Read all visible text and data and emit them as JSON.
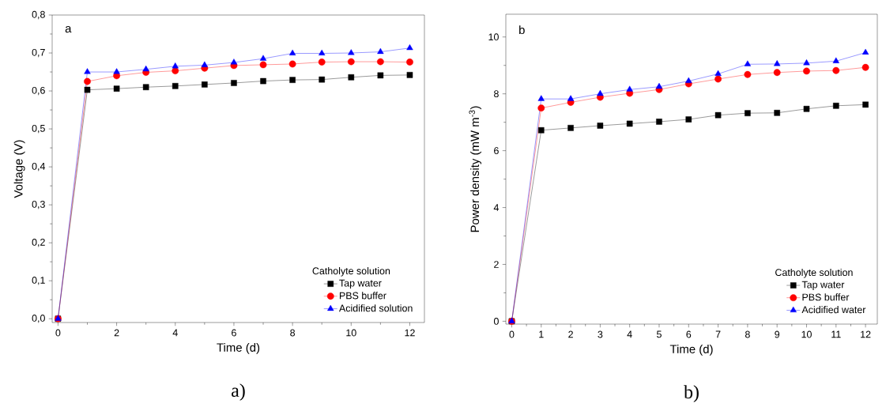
{
  "chart_data": [
    {
      "type": "line",
      "xlabel": "Time (d)",
      "ylabel": "Voltage (V)",
      "legend_title": "Catholyte solution",
      "legend": "bottom right",
      "annotations": [
        "a",
        "a)"
      ],
      "x": [
        0,
        1,
        2,
        3,
        4,
        5,
        6,
        7,
        8,
        9,
        10,
        11,
        12
      ],
      "xlim": [
        -0.2,
        12.5
      ],
      "ylim": [
        -0.01,
        0.8
      ],
      "xticks": [
        0,
        2,
        4,
        6,
        8,
        10,
        12
      ],
      "yticks": [
        {
          "value": 0,
          "label": "0,0"
        },
        {
          "value": 0.1,
          "label": "0,1"
        },
        {
          "value": 0.2,
          "label": "0,2"
        },
        {
          "value": 0.3,
          "label": "0,3"
        },
        {
          "value": 0.4,
          "label": "0,4"
        },
        {
          "value": 0.5,
          "label": "0,5"
        },
        {
          "value": 0.6,
          "label": "0,6"
        },
        {
          "value": 0.7,
          "label": "0,7"
        },
        {
          "value": 0.8,
          "label": "0,8"
        }
      ],
      "series": [
        {
          "name": "Tap water",
          "color": "#000000",
          "marker": "square",
          "values": [
            0,
            0.603,
            0.606,
            0.61,
            0.613,
            0.617,
            0.621,
            0.626,
            0.629,
            0.63,
            0.636,
            0.641,
            0.642
          ]
        },
        {
          "name": "PBS buffer",
          "color": "#ff0000",
          "marker": "circle",
          "values": [
            0,
            0.625,
            0.64,
            0.649,
            0.653,
            0.66,
            0.667,
            0.669,
            0.671,
            0.676,
            0.677,
            0.677,
            0.676
          ]
        },
        {
          "name": "Acidified solution",
          "color": "#0000ff",
          "marker": "triangle",
          "values": [
            0,
            0.65,
            0.65,
            0.657,
            0.665,
            0.668,
            0.675,
            0.685,
            0.699,
            0.699,
            0.7,
            0.703,
            0.713
          ]
        }
      ]
    },
    {
      "type": "line",
      "xlabel": "Time (d)",
      "ylabel": "Power density (mW m$^{-3}$)",
      "legend_title": "Catholyte solution",
      "legend": "bottom right",
      "annotations": [
        "b",
        "b)"
      ],
      "x": [
        0,
        1,
        2,
        3,
        4,
        5,
        6,
        7,
        8,
        9,
        10,
        11,
        12
      ],
      "xlim": [
        -0.2,
        12.4
      ],
      "ylim": [
        -0.1,
        10.8
      ],
      "xticks": [
        0,
        1,
        2,
        3,
        4,
        5,
        6,
        7,
        8,
        9,
        10,
        11,
        12
      ],
      "yticks": [
        0,
        2,
        4,
        6,
        8,
        10
      ],
      "series": [
        {
          "name": "Tap water",
          "color": "#000000",
          "marker": "square",
          "values": [
            0,
            6.72,
            6.8,
            6.88,
            6.95,
            7.02,
            7.1,
            7.25,
            7.32,
            7.33,
            7.47,
            7.58,
            7.62
          ]
        },
        {
          "name": "PBS buffer",
          "color": "#ff0000",
          "marker": "circle",
          "values": [
            0,
            7.5,
            7.7,
            7.88,
            8.02,
            8.15,
            8.35,
            8.52,
            8.68,
            8.75,
            8.8,
            8.82,
            8.93
          ]
        },
        {
          "name": "Acidified water",
          "color": "#0000ff",
          "marker": "triangle",
          "values": [
            0,
            7.82,
            7.82,
            8.0,
            8.15,
            8.25,
            8.45,
            8.7,
            9.04,
            9.05,
            9.08,
            9.15,
            9.45
          ]
        }
      ]
    }
  ]
}
